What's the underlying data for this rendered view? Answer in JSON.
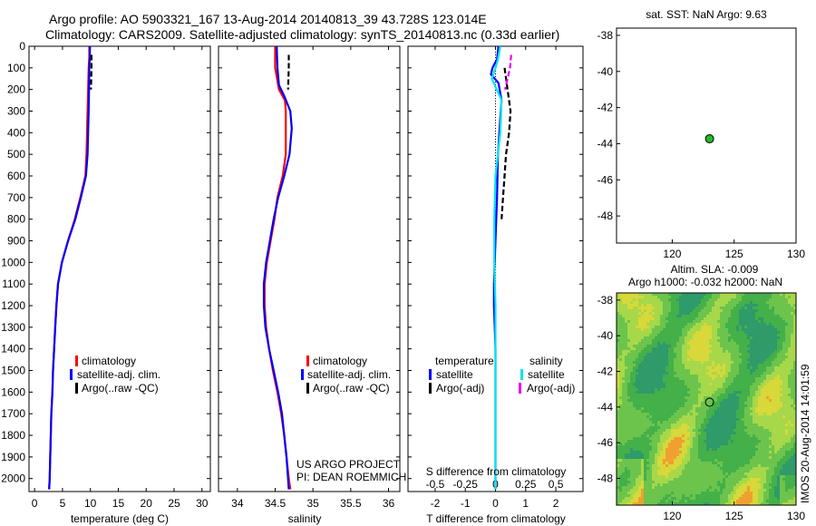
{
  "header": {
    "line1": "Argo profile: AO 5903321_167 13-Aug-2014 20140813_39 43.728S 123.014E",
    "line2": "Climatology: CARS2009. Satellite-adjusted climatology: synTS_20140813.nc (0.33d earlier)"
  },
  "side_label": "IMOS 20-Aug-2014 14:01:59",
  "colors": {
    "climatology": "#ff0000",
    "satellite": "#0000ff",
    "argo": "#000000",
    "sat_sal": "#00e5ee",
    "argo_sal": "#ee00ee",
    "marker": "#22bb22"
  },
  "chart_data": [
    {
      "id": "temperature",
      "type": "line",
      "xlabel": "temperature (deg C)",
      "xlim": [
        -1,
        31.5
      ],
      "xticks": [
        0,
        5,
        10,
        15,
        20,
        25,
        30
      ],
      "ylim": [
        0,
        2060
      ],
      "yticks": [
        0,
        100,
        200,
        300,
        400,
        500,
        600,
        700,
        800,
        900,
        1000,
        1100,
        1200,
        1300,
        1400,
        1500,
        1600,
        1700,
        1800,
        1900,
        2000
      ],
      "legend": {
        "placement": "lower-left",
        "entries": [
          "climatology",
          "satellite-adj. clim.",
          "Argo(..raw -QC)"
        ]
      },
      "series": [
        {
          "name": "climatology",
          "color": "#ff0000",
          "points": [
            [
              9.8,
              0
            ],
            [
              9.8,
              50
            ],
            [
              9.7,
              100
            ],
            [
              9.6,
              200
            ],
            [
              9.5,
              300
            ],
            [
              9.4,
              400
            ],
            [
              9.3,
              500
            ],
            [
              9.1,
              600
            ],
            [
              8.2,
              700
            ],
            [
              7.2,
              800
            ],
            [
              6.0,
              900
            ],
            [
              4.9,
              1000
            ],
            [
              4.2,
              1100
            ],
            [
              3.9,
              1200
            ],
            [
              3.7,
              1300
            ],
            [
              3.5,
              1400
            ],
            [
              3.3,
              1500
            ],
            [
              3.2,
              1600
            ],
            [
              3.0,
              1700
            ],
            [
              2.9,
              1800
            ],
            [
              2.8,
              1900
            ],
            [
              2.7,
              2000
            ],
            [
              2.6,
              2050
            ]
          ]
        },
        {
          "name": "satellite-adj. clim.",
          "color": "#0000ff",
          "points": [
            [
              9.9,
              0
            ],
            [
              9.9,
              50
            ],
            [
              9.8,
              100
            ],
            [
              9.75,
              200
            ],
            [
              9.7,
              300
            ],
            [
              9.6,
              400
            ],
            [
              9.5,
              500
            ],
            [
              9.2,
              600
            ],
            [
              8.3,
              700
            ],
            [
              7.3,
              800
            ],
            [
              6.0,
              900
            ],
            [
              4.9,
              1000
            ],
            [
              4.2,
              1100
            ],
            [
              3.9,
              1200
            ],
            [
              3.7,
              1300
            ],
            [
              3.5,
              1400
            ],
            [
              3.3,
              1500
            ],
            [
              3.2,
              1600
            ],
            [
              3.0,
              1700
            ],
            [
              2.9,
              1800
            ],
            [
              2.8,
              1900
            ],
            [
              2.7,
              2000
            ],
            [
              2.6,
              2050
            ]
          ]
        },
        {
          "name": "Argo(..raw -QC)",
          "color": "#000000",
          "dash": true,
          "points": [
            [
              10.2,
              40
            ],
            [
              10.2,
              100
            ],
            [
              10.1,
              200
            ]
          ]
        }
      ]
    },
    {
      "id": "salinity",
      "type": "line",
      "xlabel": "salinity",
      "xlim": [
        33.75,
        36.15
      ],
      "xticks": [
        34,
        34.5,
        35,
        35.5,
        36
      ],
      "ylim": [
        0,
        2060
      ],
      "legend": {
        "placement": "lower-right",
        "entries": [
          "climatology",
          "satellite-adj. clim.",
          "Argo(..raw -QC)"
        ]
      },
      "credits": [
        "US ARGO PROJECT",
        "PI: DEAN ROEMMICH"
      ],
      "series": [
        {
          "name": "climatology",
          "color": "#ff0000",
          "points": [
            [
              34.5,
              0
            ],
            [
              34.5,
              100
            ],
            [
              34.55,
              200
            ],
            [
              34.63,
              250
            ],
            [
              34.64,
              300
            ],
            [
              34.64,
              400
            ],
            [
              34.64,
              500
            ],
            [
              34.6,
              600
            ],
            [
              34.53,
              700
            ],
            [
              34.49,
              800
            ],
            [
              34.44,
              900
            ],
            [
              34.39,
              1000
            ],
            [
              34.36,
              1100
            ],
            [
              34.36,
              1200
            ],
            [
              34.38,
              1300
            ],
            [
              34.42,
              1400
            ],
            [
              34.47,
              1500
            ],
            [
              34.53,
              1600
            ],
            [
              34.58,
              1700
            ],
            [
              34.62,
              1800
            ],
            [
              34.65,
              1900
            ],
            [
              34.68,
              2000
            ],
            [
              34.7,
              2050
            ]
          ]
        },
        {
          "name": "satellite-adj. clim.",
          "color": "#0000ff",
          "points": [
            [
              34.52,
              0
            ],
            [
              34.53,
              100
            ],
            [
              34.55,
              180
            ],
            [
              34.62,
              230
            ],
            [
              34.7,
              300
            ],
            [
              34.72,
              380
            ],
            [
              34.69,
              500
            ],
            [
              34.62,
              600
            ],
            [
              34.54,
              700
            ],
            [
              34.48,
              800
            ],
            [
              34.43,
              900
            ],
            [
              34.38,
              1000
            ],
            [
              34.35,
              1100
            ],
            [
              34.35,
              1200
            ],
            [
              34.37,
              1300
            ],
            [
              34.42,
              1400
            ],
            [
              34.48,
              1500
            ],
            [
              34.54,
              1600
            ],
            [
              34.59,
              1700
            ],
            [
              34.62,
              1800
            ],
            [
              34.65,
              1900
            ],
            [
              34.67,
              2000
            ],
            [
              34.68,
              2050
            ]
          ]
        },
        {
          "name": "Argo(..raw -QC)",
          "color": "#000000",
          "dash": true,
          "points": [
            [
              34.68,
              40
            ],
            [
              34.68,
              100
            ],
            [
              34.67,
              200
            ]
          ]
        }
      ]
    },
    {
      "id": "difference",
      "type": "line",
      "xlabel": "T difference from climatology",
      "xlabel_top": "S difference from climatology",
      "xlim": [
        -2.9,
        2.9
      ],
      "xticks": [
        -2,
        -1,
        0,
        1,
        2
      ],
      "xticks_top": [
        "-0.5",
        "-0.25",
        "0",
        "0.25",
        "0.5"
      ],
      "xticks_top_values": [
        -0.5,
        -0.25,
        0,
        0.25,
        0.5
      ],
      "s_scale": 4,
      "ylim": [
        0,
        2060
      ],
      "legend": {
        "placement": "lower-center",
        "headers": [
          "temperature",
          "salinity"
        ],
        "temperature_entries": [
          "satellite",
          "Argo(-adj)"
        ],
        "salinity_entries": [
          "satellite",
          "Argo(-adj)"
        ]
      },
      "series": [
        {
          "name": "temperature satellite",
          "color": "#0000ff",
          "points": [
            [
              0.1,
              0
            ],
            [
              0.05,
              60
            ],
            [
              -0.1,
              100
            ],
            [
              -0.15,
              130
            ],
            [
              0.1,
              170
            ],
            [
              0.2,
              250
            ],
            [
              0.15,
              350
            ],
            [
              0.08,
              500
            ],
            [
              0.05,
              700
            ],
            [
              0.0,
              900
            ],
            [
              -0.05,
              1100
            ],
            [
              -0.05,
              1200
            ],
            [
              0.0,
              1400
            ],
            [
              0.0,
              2050
            ]
          ]
        },
        {
          "name": "temperature Argo(-adj)",
          "color": "#000000",
          "dash": true,
          "points": [
            [
              0.3,
              100
            ],
            [
              0.4,
              200
            ],
            [
              0.5,
              300
            ],
            [
              0.45,
              400
            ],
            [
              0.35,
              500
            ],
            [
              0.3,
              600
            ],
            [
              0.25,
              700
            ],
            [
              0.2,
              800
            ]
          ]
        },
        {
          "name": "salinity satellite",
          "color": "#00e5ee",
          "points": [
            [
              0.04,
              0
            ],
            [
              0.02,
              60
            ],
            [
              0.0,
              100
            ],
            [
              -0.03,
              150
            ],
            [
              0.05,
              250
            ],
            [
              0.04,
              400
            ],
            [
              0.0,
              600
            ],
            [
              -0.01,
              800
            ],
            [
              -0.01,
              1000
            ],
            [
              0.0,
              1200
            ],
            [
              0.0,
              1500
            ],
            [
              0.0,
              2050
            ]
          ]
        },
        {
          "name": "salinity Argo(-adj)",
          "color": "#ee00ee",
          "dash": true,
          "points": [
            [
              0.13,
              40
            ],
            [
              0.12,
              100
            ],
            [
              0.1,
              150
            ],
            [
              0.08,
              200
            ]
          ]
        }
      ]
    },
    {
      "id": "sst_map",
      "type": "scatter",
      "title": "sat. SST: NaN Argo: 9.63",
      "xlim": [
        115.5,
        130
      ],
      "ylim": [
        -49.5,
        -37.6
      ],
      "xticks": [
        120,
        125,
        130
      ],
      "yticks": [
        -38,
        -40,
        -42,
        -44,
        -46,
        -48
      ],
      "points": [
        [
          123.014,
          -43.728
        ]
      ]
    },
    {
      "id": "sla_map",
      "type": "heatmap",
      "title_line1": "Altim. SLA: -0.009",
      "title_line2": "Argo h1000: -0.032 h2000: NaN",
      "xlim": [
        115.5,
        130
      ],
      "ylim": [
        -49.5,
        -37.6
      ],
      "xticks": [
        120,
        125,
        130
      ],
      "yticks": [
        -38,
        -40,
        -42,
        -44,
        -46,
        -48
      ],
      "points": [
        [
          123.014,
          -43.728
        ]
      ]
    }
  ]
}
